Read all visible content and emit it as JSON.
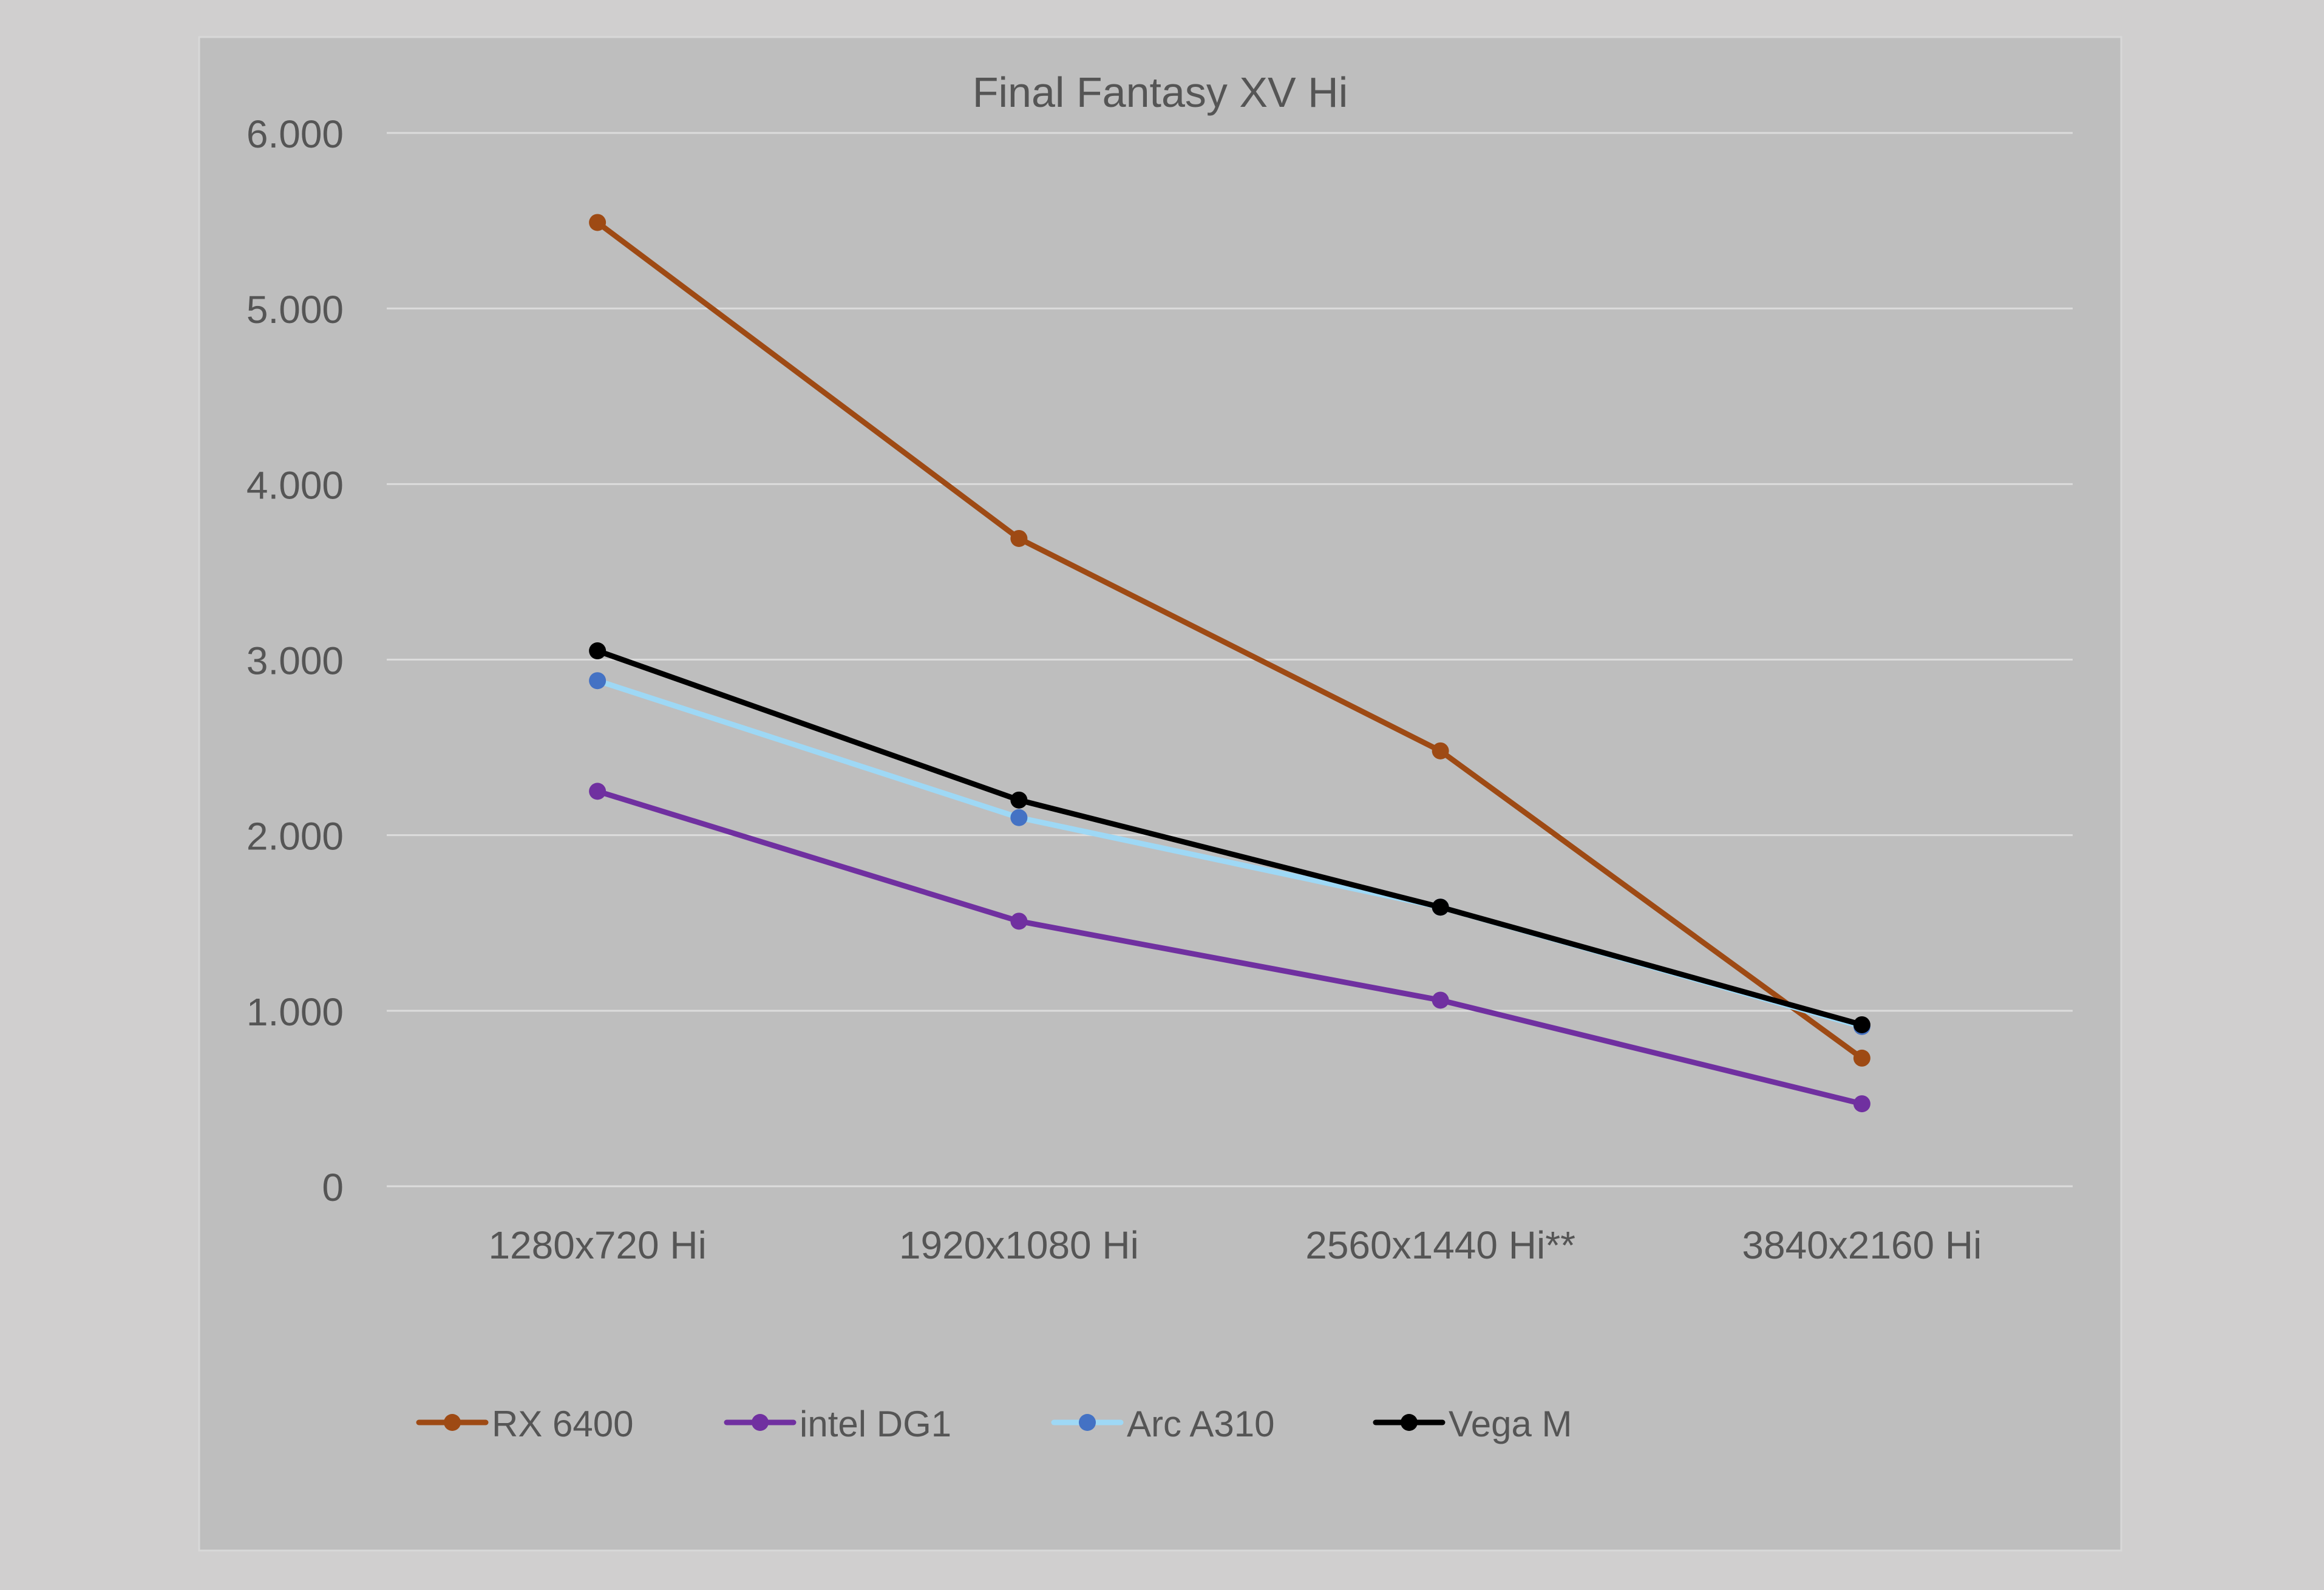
{
  "chart_data": {
    "type": "line",
    "title": "Final Fantasy XV Hi",
    "categories": [
      "1280x720 Hi",
      "1920x1080 Hi",
      "2560x1440 Hi**",
      "3840x2160 Hi"
    ],
    "ylim": [
      0,
      6000
    ],
    "yticks": [
      {
        "value": 0,
        "label": "0"
      },
      {
        "value": 1000,
        "label": "1.000"
      },
      {
        "value": 2000,
        "label": "2.000"
      },
      {
        "value": 3000,
        "label": "3.000"
      },
      {
        "value": 4000,
        "label": "4.000"
      },
      {
        "value": 5000,
        "label": "5.000"
      },
      {
        "value": 6000,
        "label": "6.000"
      }
    ],
    "grid": true,
    "legend_position": "bottom-left",
    "series": [
      {
        "name": "RX 6400",
        "line_color": "#9e4a14",
        "marker_color": "#9e4a14",
        "values": [
          5490,
          3690,
          2480,
          730
        ]
      },
      {
        "name": "intel DG1",
        "line_color": "#7030a0",
        "marker_color": "#7030a0",
        "values": [
          2250,
          1510,
          1060,
          470
        ]
      },
      {
        "name": "Arc A310",
        "line_color": "#9ed8f5",
        "marker_color": "#4472c4",
        "values": [
          2880,
          2100,
          1590,
          910
        ]
      },
      {
        "name": "Vega M",
        "line_color": "#000000",
        "marker_color": "#000000",
        "values": [
          3050,
          2200,
          1590,
          920
        ]
      }
    ],
    "colors": {
      "page_background": "#d0cfcf",
      "plot_background": "#bebebe",
      "gridline": "#dcdcdc",
      "text": "#555555"
    }
  }
}
